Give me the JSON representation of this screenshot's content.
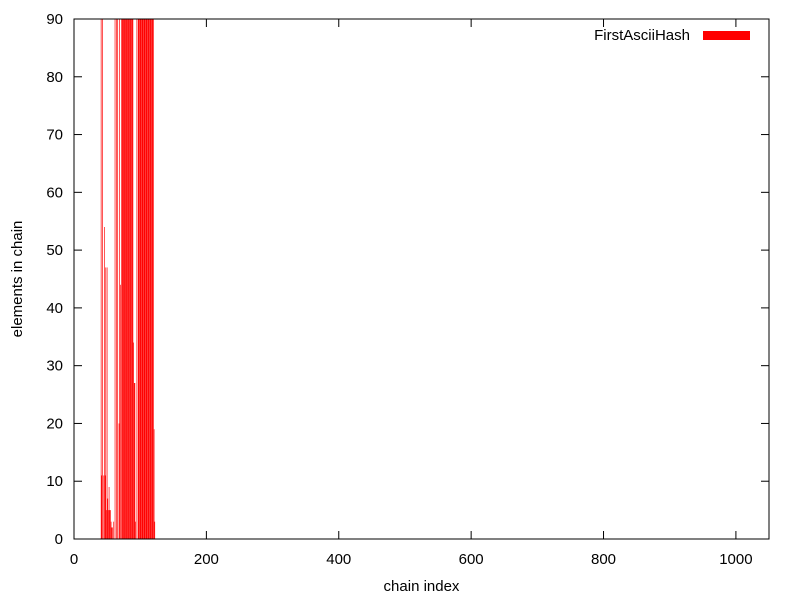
{
  "chart_data": {
    "type": "bar",
    "title": "",
    "xlabel": "chain index",
    "ylabel": "elements in chain",
    "xlim": [
      0,
      1050
    ],
    "ylim": [
      0,
      90
    ],
    "xticks": [
      0,
      200,
      400,
      600,
      800,
      1000
    ],
    "yticks": [
      0,
      10,
      20,
      30,
      40,
      50,
      60,
      70,
      80,
      90
    ],
    "grid": false,
    "legend_position": "top-right",
    "bar_color": "#ff0000",
    "series": [
      {
        "name": "FirstAsciiHash",
        "x": [
          41,
          42,
          43,
          45,
          46,
          47,
          48,
          49,
          50,
          51,
          52,
          53,
          54,
          55,
          56,
          57,
          58,
          60,
          62,
          64,
          66,
          68,
          69,
          70,
          72,
          73,
          74,
          75,
          76,
          77,
          78,
          79,
          80,
          81,
          82,
          83,
          84,
          85,
          86,
          87,
          88,
          89,
          90,
          91,
          92,
          93,
          95,
          97,
          98,
          99,
          100,
          101,
          102,
          103,
          104,
          105,
          106,
          107,
          108,
          109,
          110,
          111,
          112,
          113,
          114,
          115,
          116,
          117,
          118,
          119,
          120,
          121,
          122
        ],
        "values": [
          90,
          11,
          90,
          11,
          54,
          11,
          47,
          5,
          47,
          7,
          5,
          9,
          5,
          5,
          3,
          2,
          2,
          3,
          90,
          90,
          90,
          20,
          90,
          44,
          90,
          90,
          90,
          90,
          90,
          90,
          90,
          90,
          90,
          90,
          90,
          90,
          90,
          90,
          90,
          90,
          90,
          90,
          34,
          27,
          27,
          3,
          90,
          90,
          90,
          90,
          90,
          90,
          90,
          90,
          90,
          90,
          90,
          90,
          90,
          90,
          90,
          90,
          90,
          90,
          90,
          90,
          90,
          90,
          90,
          90,
          90,
          19,
          3
        ]
      }
    ]
  }
}
